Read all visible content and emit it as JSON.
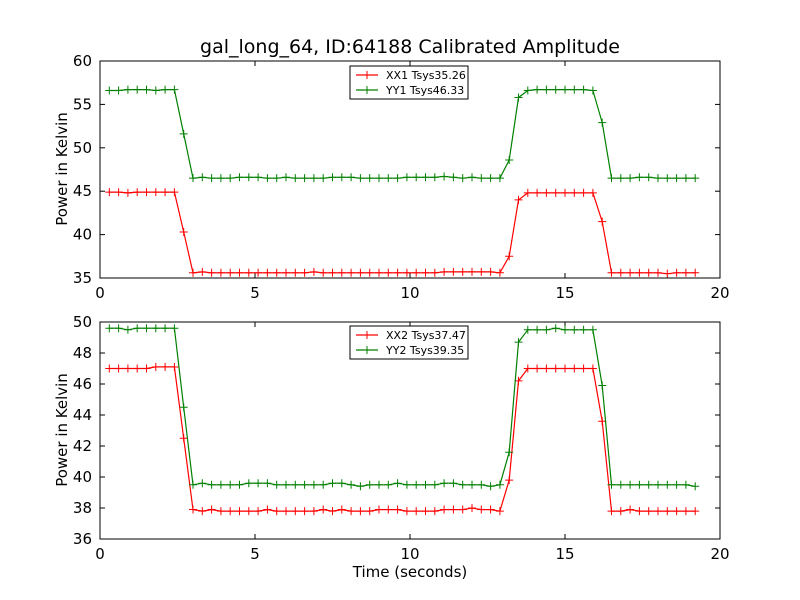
{
  "figure": {
    "title": "gal_long_64, ID:64188 Calibrated Amplitude",
    "xlabel": "Time (seconds)"
  },
  "colors": {
    "xx": "#ff0000",
    "yy": "#008000",
    "axes": "#000000",
    "background": "#ffffff"
  },
  "chart_data": [
    {
      "type": "line",
      "title": "gal_long_64, ID:64188 Calibrated Amplitude",
      "xlabel": "",
      "ylabel": "Power in Kelvin",
      "xlim": [
        0,
        20
      ],
      "ylim": [
        35,
        60
      ],
      "xticks": [
        "0",
        "5",
        "10",
        "15",
        "20"
      ],
      "yticks": [
        "35",
        "40",
        "45",
        "50",
        "55",
        "60"
      ],
      "grid": false,
      "legend_position": "upper center",
      "marker": "plus",
      "x": [
        0.3,
        0.6,
        0.9,
        1.2,
        1.5,
        1.8,
        2.1,
        2.4,
        2.7,
        3.0,
        3.3,
        3.6,
        3.9,
        4.2,
        4.5,
        4.8,
        5.1,
        5.4,
        5.7,
        6.0,
        6.3,
        6.6,
        6.9,
        7.2,
        7.5,
        7.8,
        8.1,
        8.4,
        8.7,
        9.0,
        9.3,
        9.6,
        9.9,
        10.2,
        10.5,
        10.8,
        11.1,
        11.4,
        11.7,
        12.0,
        12.3,
        12.6,
        12.9,
        13.2,
        13.5,
        13.8,
        14.1,
        14.4,
        14.7,
        15.0,
        15.3,
        15.6,
        15.9,
        16.2,
        16.5,
        16.8,
        17.1,
        17.4,
        17.7,
        18.0,
        18.3,
        18.6,
        18.9,
        19.2
      ],
      "series": [
        {
          "name": "XX1 Tsys35.26",
          "color": "#ff0000",
          "values": [
            44.9,
            44.9,
            44.8,
            44.9,
            44.9,
            44.9,
            44.9,
            44.9,
            40.3,
            35.6,
            35.7,
            35.6,
            35.6,
            35.6,
            35.6,
            35.6,
            35.6,
            35.6,
            35.6,
            35.6,
            35.6,
            35.6,
            35.7,
            35.6,
            35.6,
            35.6,
            35.6,
            35.6,
            35.6,
            35.6,
            35.6,
            35.6,
            35.6,
            35.6,
            35.6,
            35.6,
            35.7,
            35.7,
            35.7,
            35.7,
            35.7,
            35.7,
            35.6,
            37.5,
            44.0,
            44.8,
            44.8,
            44.8,
            44.8,
            44.8,
            44.8,
            44.8,
            44.8,
            41.5,
            35.6,
            35.6,
            35.6,
            35.6,
            35.6,
            35.6,
            35.5,
            35.6,
            35.6,
            35.6
          ]
        },
        {
          "name": "YY1 Tsys46.33",
          "color": "#008000",
          "values": [
            56.6,
            56.6,
            56.7,
            56.7,
            56.7,
            56.6,
            56.7,
            56.7,
            51.6,
            46.5,
            46.6,
            46.5,
            46.5,
            46.5,
            46.6,
            46.6,
            46.6,
            46.5,
            46.5,
            46.6,
            46.5,
            46.5,
            46.5,
            46.5,
            46.6,
            46.6,
            46.6,
            46.5,
            46.5,
            46.5,
            46.5,
            46.5,
            46.6,
            46.6,
            46.6,
            46.6,
            46.7,
            46.6,
            46.5,
            46.6,
            46.5,
            46.5,
            46.5,
            48.6,
            55.8,
            56.6,
            56.7,
            56.7,
            56.7,
            56.7,
            56.7,
            56.7,
            56.6,
            52.9,
            46.5,
            46.5,
            46.5,
            46.6,
            46.6,
            46.5,
            46.5,
            46.5,
            46.5,
            46.5
          ]
        }
      ]
    },
    {
      "type": "line",
      "title": "",
      "xlabel": "Time (seconds)",
      "ylabel": "Power in Kelvin",
      "xlim": [
        0,
        20
      ],
      "ylim": [
        36,
        50
      ],
      "xticks": [
        "0",
        "5",
        "10",
        "15",
        "20"
      ],
      "yticks": [
        "36",
        "38",
        "40",
        "42",
        "44",
        "46",
        "48",
        "50"
      ],
      "grid": false,
      "legend_position": "upper center",
      "marker": "plus",
      "x": [
        0.3,
        0.6,
        0.9,
        1.2,
        1.5,
        1.8,
        2.1,
        2.4,
        2.7,
        3.0,
        3.3,
        3.6,
        3.9,
        4.2,
        4.5,
        4.8,
        5.1,
        5.4,
        5.7,
        6.0,
        6.3,
        6.6,
        6.9,
        7.2,
        7.5,
        7.8,
        8.1,
        8.4,
        8.7,
        9.0,
        9.3,
        9.6,
        9.9,
        10.2,
        10.5,
        10.8,
        11.1,
        11.4,
        11.7,
        12.0,
        12.3,
        12.6,
        12.9,
        13.2,
        13.5,
        13.8,
        14.1,
        14.4,
        14.7,
        15.0,
        15.3,
        15.6,
        15.9,
        16.2,
        16.5,
        16.8,
        17.1,
        17.4,
        17.7,
        18.0,
        18.3,
        18.6,
        18.9,
        19.2
      ],
      "series": [
        {
          "name": "XX2 Tsys37.47",
          "color": "#ff0000",
          "values": [
            47.0,
            47.0,
            47.0,
            47.0,
            47.0,
            47.1,
            47.1,
            47.1,
            42.5,
            37.9,
            37.8,
            37.9,
            37.8,
            37.8,
            37.8,
            37.8,
            37.8,
            37.9,
            37.8,
            37.8,
            37.8,
            37.8,
            37.8,
            37.9,
            37.8,
            37.9,
            37.8,
            37.8,
            37.8,
            37.9,
            37.9,
            37.9,
            37.8,
            37.8,
            37.8,
            37.8,
            37.9,
            37.9,
            37.9,
            38.0,
            37.9,
            37.9,
            37.8,
            39.8,
            46.2,
            47.0,
            47.0,
            47.0,
            47.0,
            47.0,
            47.0,
            47.0,
            47.0,
            43.6,
            37.8,
            37.8,
            37.9,
            37.8,
            37.8,
            37.8,
            37.8,
            37.8,
            37.8,
            37.8
          ]
        },
        {
          "name": "YY2 Tsys39.35",
          "color": "#008000",
          "values": [
            49.6,
            49.6,
            49.5,
            49.6,
            49.6,
            49.6,
            49.6,
            49.6,
            44.5,
            39.5,
            39.6,
            39.5,
            39.5,
            39.5,
            39.5,
            39.6,
            39.6,
            39.6,
            39.5,
            39.5,
            39.5,
            39.5,
            39.5,
            39.5,
            39.6,
            39.6,
            39.5,
            39.4,
            39.5,
            39.5,
            39.5,
            39.6,
            39.5,
            39.5,
            39.5,
            39.5,
            39.6,
            39.6,
            39.5,
            39.5,
            39.5,
            39.4,
            39.5,
            41.6,
            48.7,
            49.5,
            49.5,
            49.5,
            49.6,
            49.5,
            49.5,
            49.5,
            49.5,
            45.9,
            39.5,
            39.5,
            39.5,
            39.5,
            39.5,
            39.5,
            39.5,
            39.5,
            39.5,
            39.4
          ]
        }
      ]
    }
  ]
}
